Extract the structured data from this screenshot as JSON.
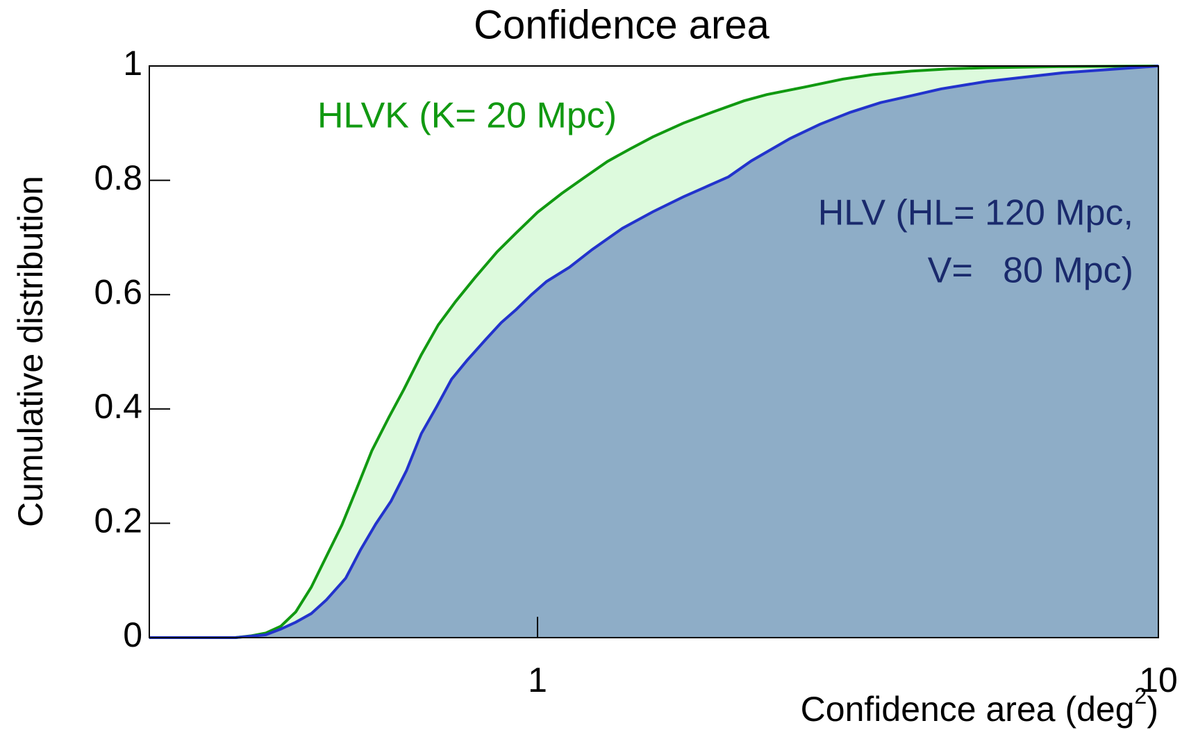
{
  "chart_data": {
    "type": "area",
    "title": "Confidence area",
    "xlabel": [
      "Confidence area (deg",
      "2",
      ")"
    ],
    "ylabel": "Cumulative distribution",
    "xscale": "log",
    "xlim": [
      0.237,
      10
    ],
    "xticks": [
      1,
      10
    ],
    "ylim": [
      0,
      1
    ],
    "yticks": [
      0,
      0.2,
      0.4,
      0.6,
      0.8,
      1
    ],
    "series": [
      {
        "name": "HLVK (K= 20 Mpc)",
        "color": "#119911",
        "fill": "#ddfadd",
        "x": [
          0.237,
          0.326,
          0.345,
          0.365,
          0.386,
          0.408,
          0.432,
          0.457,
          0.484,
          0.512,
          0.541,
          0.576,
          0.609,
          0.65,
          0.692,
          0.738,
          0.792,
          0.861,
          0.924,
          1,
          1.094,
          1.19,
          1.296,
          1.41,
          1.534,
          1.717,
          1.921,
          2.15,
          2.34,
          2.69,
          3.1,
          3.47,
          4,
          4.6,
          5.29,
          7.01,
          10
        ],
        "values": [
          0,
          0,
          0.003,
          0.008,
          0.02,
          0.045,
          0.088,
          0.142,
          0.197,
          0.262,
          0.327,
          0.385,
          0.434,
          0.495,
          0.547,
          0.588,
          0.629,
          0.675,
          0.708,
          0.744,
          0.777,
          0.805,
          0.833,
          0.855,
          0.876,
          0.9,
          0.92,
          0.939,
          0.95,
          0.963,
          0.977,
          0.985,
          0.991,
          0.995,
          0.997,
          0.999,
          1
        ]
      },
      {
        "name": "HLV",
        "color": "#2233cc",
        "fill": "#8eadc7",
        "x": [
          0.237,
          0.326,
          0.365,
          0.386,
          0.408,
          0.432,
          0.457,
          0.491,
          0.519,
          0.549,
          0.581,
          0.615,
          0.65,
          0.688,
          0.727,
          0.77,
          0.826,
          0.874,
          0.924,
          0.978,
          1.034,
          1.126,
          1.225,
          1.37,
          1.534,
          1.717,
          2.03,
          2.21,
          2.55,
          2.85,
          3.19,
          3.57,
          4,
          4.47,
          5.29,
          7.01,
          10
        ],
        "values": [
          0,
          0,
          0.005,
          0.015,
          0.027,
          0.042,
          0.066,
          0.104,
          0.154,
          0.199,
          0.239,
          0.292,
          0.357,
          0.404,
          0.452,
          0.485,
          0.522,
          0.551,
          0.574,
          0.6,
          0.623,
          0.648,
          0.679,
          0.716,
          0.745,
          0.771,
          0.806,
          0.834,
          0.873,
          0.898,
          0.919,
          0.936,
          0.948,
          0.96,
          0.973,
          0.988,
          1
        ]
      }
    ],
    "annotations": [
      {
        "text": "HLVK (K= 20 Mpc)",
        "color": "#119911"
      },
      {
        "text": "HLV (HL= 120 Mpc,",
        "color": "#1a2a6c"
      },
      {
        "text": "V=   80 Mpc)",
        "color": "#1a2a6c"
      }
    ]
  }
}
